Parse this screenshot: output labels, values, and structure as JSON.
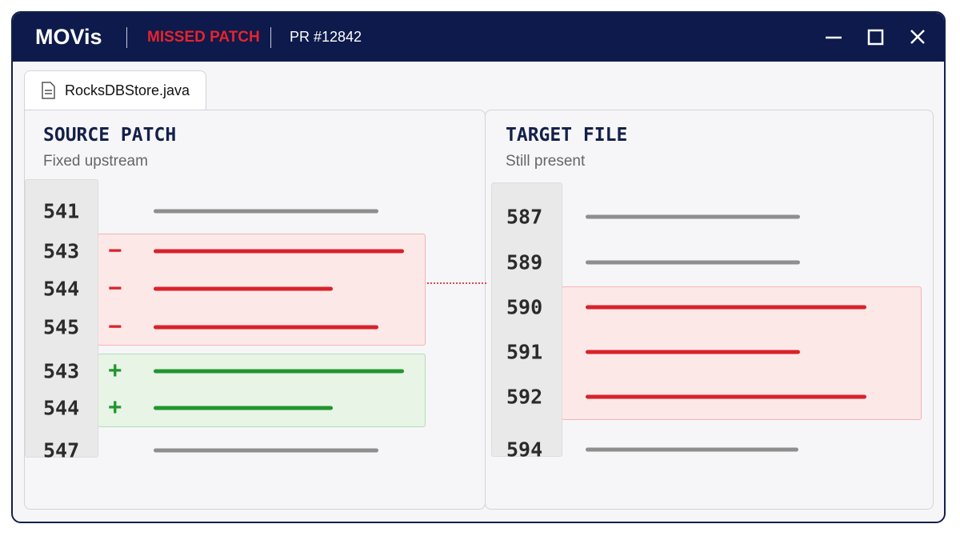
{
  "header": {
    "app": "MOVis",
    "status": "MISSED PATCH",
    "pr": "PR #12842"
  },
  "tab": {
    "filename": "RocksDBStore.java"
  },
  "source": {
    "title": "SOURCE PATCH",
    "subtitle": "Fixed upstream",
    "lines": [
      {
        "number": 541
      },
      {
        "number": 543,
        "marker": "−"
      },
      {
        "number": 544,
        "marker": "−"
      },
      {
        "number": 545,
        "marker": "−"
      },
      {
        "number": 543,
        "marker": "+"
      },
      {
        "number": 544,
        "marker": "+"
      },
      {
        "number": 547
      }
    ]
  },
  "target": {
    "title": "TARGET FILE",
    "subtitle": "Still present",
    "lines": [
      {
        "number": 587
      },
      {
        "number": 589
      },
      {
        "number": 590
      },
      {
        "number": 591
      },
      {
        "number": 592
      },
      {
        "number": 594
      }
    ]
  }
}
